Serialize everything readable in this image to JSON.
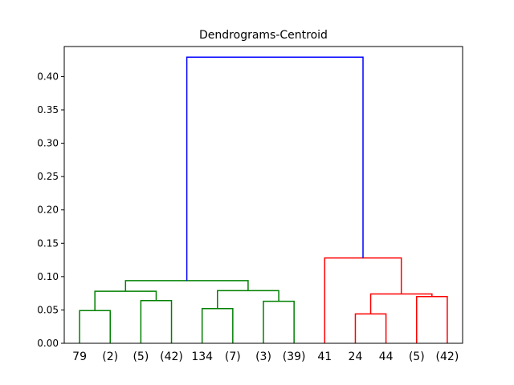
{
  "chart_data": {
    "type": "dendrogram",
    "title": "Dendrograms-Centroid",
    "xlabel": "",
    "ylabel": "",
    "ylim": [
      0,
      0.445
    ],
    "yticks": [
      {
        "value": 0.0,
        "label": "0.00"
      },
      {
        "value": 0.05,
        "label": "0.05"
      },
      {
        "value": 0.1,
        "label": "0.10"
      },
      {
        "value": 0.15,
        "label": "0.15"
      },
      {
        "value": 0.2,
        "label": "0.20"
      },
      {
        "value": 0.25,
        "label": "0.25"
      },
      {
        "value": 0.3,
        "label": "0.30"
      },
      {
        "value": 0.35,
        "label": "0.35"
      },
      {
        "value": 0.4,
        "label": "0.40"
      }
    ],
    "leaves": [
      "79",
      "(2)",
      "(5)",
      "(42)",
      "134",
      "(7)",
      "(3)",
      "(39)",
      "41",
      "24",
      "44",
      "(5)",
      "(42)"
    ],
    "grid": false,
    "colors": {
      "cluster_1": "#008000",
      "cluster_2": "#ff0000",
      "root": "#0000ff"
    },
    "merges": [
      {
        "left": 0,
        "right": 1,
        "height": 0.049,
        "color": "#008000"
      },
      {
        "left": 2,
        "right": 3,
        "height": 0.064,
        "color": "#008000"
      },
      {
        "left": 0.5,
        "right": 2.5,
        "height": 0.078,
        "color": "#008000"
      },
      {
        "left": 4,
        "right": 5,
        "height": 0.052,
        "color": "#008000"
      },
      {
        "left": 6,
        "right": 7,
        "height": 0.063,
        "color": "#008000"
      },
      {
        "left": 4.5,
        "right": 6.5,
        "height": 0.079,
        "color": "#008000"
      },
      {
        "left": 1.5,
        "right": 5.5,
        "height": 0.094,
        "color": "#008000"
      },
      {
        "left": 9,
        "right": 10,
        "height": 0.044,
        "color": "#ff0000"
      },
      {
        "left": 11,
        "right": 12,
        "height": 0.07,
        "color": "#ff0000"
      },
      {
        "left": 9.5,
        "right": 11.5,
        "height": 0.074,
        "color": "#ff0000"
      },
      {
        "left": 8,
        "right": 10.5,
        "height": 0.128,
        "color": "#ff0000"
      },
      {
        "left": 3.5,
        "right": 9.25,
        "height": 0.429,
        "color": "#0000ff"
      }
    ]
  }
}
